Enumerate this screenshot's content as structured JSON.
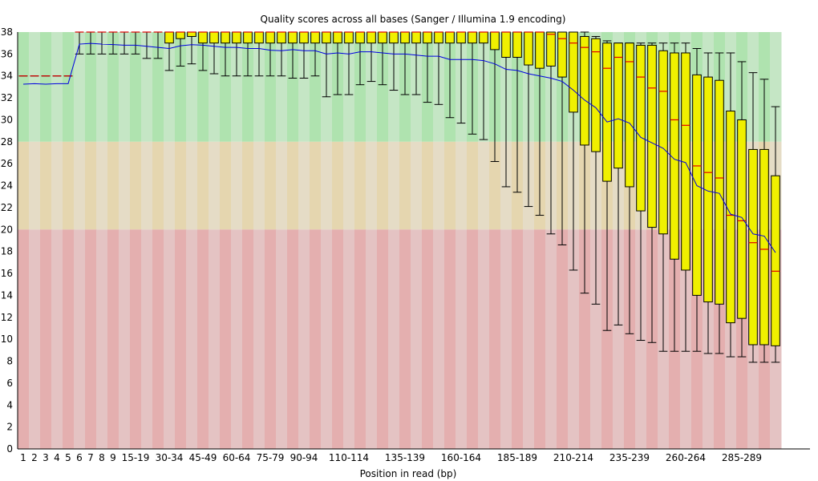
{
  "chart_data": {
    "type": "box",
    "title": "Quality scores across all bases (Sanger / Illumina 1.9 encoding)",
    "xlabel": "Position in read (bp)",
    "ylabel": "",
    "ylim": [
      0,
      38
    ],
    "y_ticks": [
      0,
      2,
      4,
      6,
      8,
      10,
      12,
      14,
      16,
      18,
      20,
      22,
      24,
      26,
      28,
      30,
      32,
      34,
      36,
      38
    ],
    "categories": [
      "1",
      "2",
      "3",
      "4",
      "5",
      "6",
      "7",
      "8",
      "9",
      "10-14",
      "15-19",
      "20-24",
      "25-29",
      "30-34",
      "35-39",
      "40-44",
      "45-49",
      "50-54",
      "55-59",
      "60-64",
      "65-69",
      "70-74",
      "75-79",
      "80-84",
      "85-89",
      "90-94",
      "95-99",
      "100-104",
      "105-109",
      "110-114",
      "115-119",
      "120-124",
      "125-129",
      "130-134",
      "135-139",
      "140-144",
      "145-149",
      "150-154",
      "155-159",
      "160-164",
      "165-169",
      "170-174",
      "175-179",
      "180-184",
      "185-189",
      "190-194",
      "195-199",
      "200-204",
      "205-209",
      "210-214",
      "215-219",
      "220-224",
      "225-229",
      "230-234",
      "235-239",
      "240-244",
      "245-249",
      "250-254",
      "255-259",
      "260-264",
      "265-269",
      "270-274",
      "275-279",
      "280-284",
      "285-289",
      "290-294",
      "295-299",
      "300-301"
    ],
    "x_tick_labels": [
      "1",
      "2",
      "3",
      "4",
      "5",
      "6",
      "7",
      "8",
      "9",
      "15-19",
      "30-34",
      "45-49",
      "60-64",
      "75-79",
      "90-94",
      "110-114",
      "135-139",
      "160-164",
      "185-189",
      "210-214",
      "235-239",
      "260-264",
      "285-289"
    ],
    "lower_whisker": [
      34,
      34,
      34,
      34,
      34,
      36,
      36,
      36,
      36,
      36,
      36,
      35.6,
      35.6,
      34.5,
      34.9,
      35.1,
      34.5,
      34.2,
      34,
      34,
      34,
      34,
      34,
      34,
      33.8,
      33.8,
      34,
      32.1,
      32.3,
      32.3,
      33.2,
      33.5,
      33.2,
      32.7,
      32.3,
      32.3,
      31.6,
      31.4,
      30.2,
      29.7,
      28.7,
      28.2,
      26.2,
      23.9,
      23.4,
      22.1,
      21.3,
      19.6,
      18.6,
      16.3,
      14.2,
      13.2,
      10.8,
      11.3,
      10.5,
      9.9,
      9.7,
      8.9,
      8.9,
      8.9,
      8.9,
      8.7,
      8.7,
      8.4,
      8.4,
      7.9,
      7.9,
      7.9
    ],
    "lower_quartile": [
      34,
      34,
      34,
      34,
      34,
      38,
      38,
      38,
      38,
      38,
      38,
      38,
      38,
      37,
      37.4,
      37.6,
      37,
      37,
      37,
      37,
      37,
      37,
      37,
      37,
      37,
      37,
      37,
      37,
      37,
      37,
      37,
      37,
      37,
      37,
      37,
      37,
      37,
      37,
      37,
      37,
      37,
      37,
      36.4,
      35.7,
      35.7,
      35.0,
      34.7,
      34.9,
      33.9,
      30.7,
      27.7,
      27.1,
      24.4,
      25.6,
      23.9,
      21.7,
      20.2,
      19.6,
      17.3,
      16.3,
      14.0,
      13.4,
      13.2,
      11.5,
      11.9,
      9.5,
      9.5,
      9.4
    ],
    "median": [
      34,
      34,
      34,
      34,
      34,
      38,
      38,
      38,
      38,
      38,
      38,
      38,
      38,
      38,
      38,
      38,
      38,
      38,
      38,
      38,
      38,
      38,
      38,
      38,
      38,
      38,
      38,
      38,
      38,
      38,
      38,
      38,
      38,
      38,
      38,
      38,
      38,
      38,
      38,
      38,
      38,
      38,
      38,
      38,
      38,
      38,
      38,
      37.8,
      37.4,
      37.0,
      36.6,
      36.2,
      34.7,
      35.7,
      35.3,
      33.9,
      32.9,
      32.6,
      30.0,
      29.5,
      25.8,
      25.2,
      24.7,
      21.3,
      20.8,
      18.8,
      18.2,
      16.2
    ],
    "upper_quartile": [
      34,
      34,
      34,
      34,
      34,
      38,
      38,
      38,
      38,
      38,
      38,
      38,
      38,
      38,
      38,
      38,
      38,
      38,
      38,
      38,
      38,
      38,
      38,
      38,
      38,
      38,
      38,
      38,
      38,
      38,
      38,
      38,
      38,
      38,
      38,
      38,
      38,
      38,
      38,
      38,
      38,
      38,
      38,
      38,
      38,
      38,
      38,
      38,
      38,
      38,
      37.6,
      37.4,
      37,
      37,
      37,
      36.8,
      36.8,
      36.3,
      36.1,
      36.1,
      34.1,
      33.9,
      33.6,
      30.8,
      30.0,
      27.3,
      27.3,
      24.9
    ],
    "upper_whisker": [
      34,
      34,
      34,
      34,
      34,
      38,
      38,
      38,
      38,
      38,
      38,
      38,
      38,
      38,
      38,
      38,
      38,
      38,
      38,
      38,
      38,
      38,
      38,
      38,
      38,
      38,
      38,
      38,
      38,
      38,
      38,
      38,
      38,
      38,
      38,
      38,
      38,
      38,
      38,
      38,
      38,
      38,
      38,
      38,
      38,
      38,
      38,
      38,
      38,
      38,
      38,
      37.6,
      37.2,
      37,
      37,
      37,
      37,
      37,
      37,
      37,
      36.5,
      36.1,
      36.1,
      36.1,
      35.3,
      34.3,
      33.7,
      31.2
    ],
    "mean": [
      33.25,
      33.3,
      33.25,
      33.3,
      33.3,
      36.9,
      36.97,
      36.9,
      36.86,
      36.8,
      36.8,
      36.7,
      36.6,
      36.5,
      36.75,
      36.85,
      36.8,
      36.7,
      36.6,
      36.6,
      36.5,
      36.5,
      36.35,
      36.3,
      36.4,
      36.3,
      36.3,
      36.0,
      36.1,
      36.0,
      36.2,
      36.2,
      36.1,
      36.0,
      36.0,
      35.9,
      35.8,
      35.8,
      35.5,
      35.5,
      35.5,
      35.4,
      35.1,
      34.6,
      34.5,
      34.2,
      34.0,
      33.8,
      33.5,
      32.7,
      31.8,
      31.1,
      29.8,
      30.1,
      29.7,
      28.4,
      27.9,
      27.4,
      26.4,
      26.1,
      24.0,
      23.5,
      23.3,
      21.4,
      21.1,
      19.6,
      19.4,
      17.9
    ],
    "background_bands": [
      {
        "from": 28,
        "to": 38,
        "colors": [
          "#afe3af",
          "#c5e6c5"
        ]
      },
      {
        "from": 20,
        "to": 28,
        "colors": [
          "#e5d6af",
          "#e5dcc6"
        ]
      },
      {
        "from": 0,
        "to": 20,
        "colors": [
          "#e4afaf",
          "#e4c3c3"
        ]
      }
    ],
    "colors": {
      "box": "#f0f000",
      "median": "#e00000",
      "mean": "#0000e0",
      "whisker": "#000000"
    },
    "grid": false,
    "legend": "none"
  }
}
